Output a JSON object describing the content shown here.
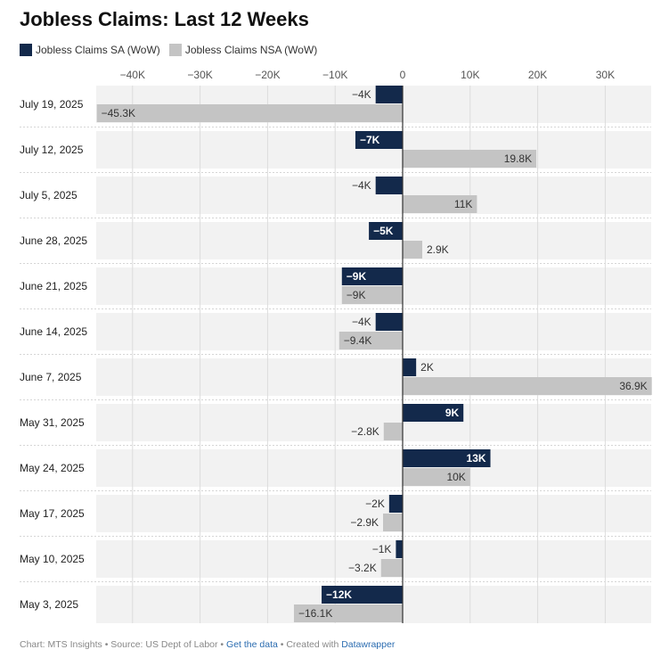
{
  "title": "Jobless Claims: Last 12 Weeks",
  "colors": {
    "sa": "#13294b",
    "nsa": "#c4c4c4",
    "row_bg": "#f2f2f2",
    "grid": "#dcdcdc"
  },
  "footer": {
    "source": "Chart: MTS Insights • Source: US Dept of Labor • ",
    "get_data": "Get the data",
    "sep": " • Created with ",
    "created_with": "Datawrapper"
  },
  "chart_data": {
    "type": "bar",
    "orientation": "horizontal",
    "categories": [
      "July 19, 2025",
      "July 12, 2025",
      "July 5, 2025",
      "June 28, 2025",
      "June 21, 2025",
      "June 14, 2025",
      "June 7, 2025",
      "May 31, 2025",
      "May 24, 2025",
      "May 17, 2025",
      "May 10, 2025",
      "May 3, 2025"
    ],
    "series": [
      {
        "name": "Jobless Claims SA (WoW)",
        "values": [
          -4000,
          -7000,
          -4000,
          -5000,
          -9000,
          -4000,
          2000,
          9000,
          13000,
          -2000,
          -1000,
          -12000
        ],
        "labels": [
          "−4K",
          "−7K",
          "−4K",
          "−5K",
          "−9K",
          "−4K",
          "2K",
          "9K",
          "13K",
          "−2K",
          "−1K",
          "−12K"
        ]
      },
      {
        "name": "Jobless Claims NSA (WoW)",
        "values": [
          -45300,
          19800,
          11000,
          2900,
          -9000,
          -9400,
          36900,
          -2800,
          10000,
          -2900,
          -3200,
          -16100
        ],
        "labels": [
          "−45.3K",
          "19.8K",
          "11K",
          "2.9K",
          "−9K",
          "−9.4K",
          "36.9K",
          "−2.8K",
          "10K",
          "−2.9K",
          "−3.2K",
          "−16.1K"
        ]
      }
    ],
    "xlim": [
      -45300,
      36900
    ],
    "ticks": [
      -40000,
      -30000,
      -20000,
      -10000,
      0,
      10000,
      20000,
      30000
    ],
    "tick_labels": [
      "−40K",
      "−30K",
      "−20K",
      "−10K",
      "0",
      "10K",
      "20K",
      "30K"
    ],
    "legend_position": "top-left",
    "grid": true
  }
}
